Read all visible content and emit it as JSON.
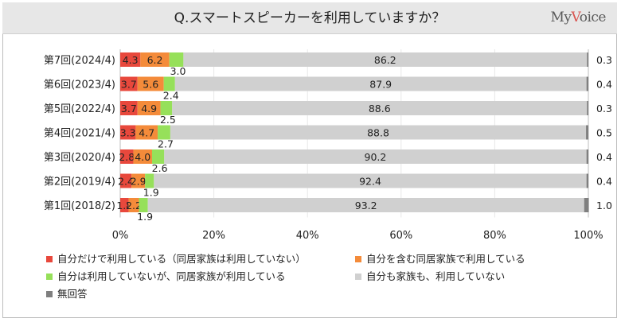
{
  "header": {
    "title": "Q.スマートスピーカーを利用していますか？",
    "brand_prefix": "My",
    "brand_v": "V",
    "brand_suffix": "oice"
  },
  "colors": {
    "use_self_only": "#e8483c",
    "use_with_family": "#f48b3a",
    "family_only": "#96e05a",
    "none": "#d0d0d0",
    "no_answer": "#7f7f7f",
    "brand_accent": "#d9534f"
  },
  "chart_data": {
    "type": "bar",
    "orientation": "horizontal",
    "stacked": true,
    "xlim": [
      0,
      100
    ],
    "x_ticks": [
      "0%",
      "20%",
      "40%",
      "60%",
      "80%",
      "100%"
    ],
    "categories": [
      "第7回(2024/4)",
      "第6回(2023/4)",
      "第5回(2022/4)",
      "第4回(2021/4)",
      "第3回(2020/4)",
      "第2回(2019/4)",
      "第1回(2018/2)"
    ],
    "series": [
      {
        "name": "自分だけで利用している（同居家族は利用していない）",
        "color": "#e8483c",
        "values": [
          4.3,
          3.7,
          3.7,
          3.3,
          2.8,
          2.4,
          1.8
        ]
      },
      {
        "name": "自分を含む同居家族で利用している",
        "color": "#f48b3a",
        "values": [
          6.2,
          5.6,
          4.9,
          4.7,
          4.0,
          2.9,
          2.2
        ]
      },
      {
        "name": "自分は利用していないが、同居家族が利用している",
        "color": "#96e05a",
        "values": [
          3.0,
          2.4,
          2.5,
          2.7,
          2.6,
          1.9,
          1.9
        ]
      },
      {
        "name": "自分も家族も、利用していない",
        "color": "#d0d0d0",
        "values": [
          86.2,
          87.9,
          88.6,
          88.8,
          90.2,
          92.4,
          93.2
        ]
      },
      {
        "name": "無回答",
        "color": "#7f7f7f",
        "values": [
          0.3,
          0.4,
          0.3,
          0.5,
          0.4,
          0.4,
          1.0
        ]
      }
    ],
    "legend_placement": "bottom"
  }
}
